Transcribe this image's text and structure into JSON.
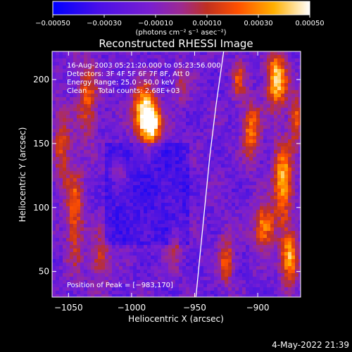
{
  "chart_data": {
    "type": "heatmap",
    "title": "Reconstructed RHESSI Image",
    "xlabel": "Heliocentric X (arcsec)",
    "ylabel": "Heliocentric Y (arcsec)",
    "xlim": [
      -1063,
      -866
    ],
    "ylim": [
      30,
      222
    ],
    "x_ticks": [
      {
        "value": -1050,
        "label": "−1050"
      },
      {
        "value": -1000,
        "label": "−1000"
      },
      {
        "value": -950,
        "label": "−950"
      },
      {
        "value": -900,
        "label": "−900"
      }
    ],
    "y_ticks": [
      {
        "value": 50,
        "label": "50"
      },
      {
        "value": 100,
        "label": "100"
      },
      {
        "value": 150,
        "label": "150"
      },
      {
        "value": 200,
        "label": "200"
      }
    ],
    "colorbar": {
      "min": -0.0005,
      "max": 0.0005,
      "ticks": [
        {
          "value": -0.0005,
          "label": "−0.00050"
        },
        {
          "value": -0.0003,
          "label": "−0.00030"
        },
        {
          "value": -0.0001,
          "label": "−0.00010"
        },
        {
          "value": 0.0001,
          "label": "0.00010"
        },
        {
          "value": 0.0003,
          "label": "0.00030"
        },
        {
          "value": 0.0005,
          "label": "0.00050"
        }
      ],
      "units": "(photons cm⁻² s⁻¹ asec⁻²)",
      "colors": [
        "#0000ff",
        "#7a1fd0",
        "#9d2a90",
        "#c03020",
        "#ff5000",
        "#ffb000",
        "#ffffff"
      ]
    },
    "annotations": [
      "16-Aug-2003 05:21:20.000 to 05:23:56.000",
      "Detectors: 3F 4F 5F 6F 7F 8F, Att 0",
      "Energy Range: 25.0 - 50.0 keV",
      "Clean     Total counts: 2.68E+03"
    ],
    "peak_label": "Position of Peak = [−983,170]",
    "limb_curve": [
      [
        -949,
        30
      ],
      [
        -946,
        60
      ],
      [
        -942,
        100
      ],
      [
        -938,
        140
      ],
      [
        -933,
        180
      ],
      [
        -927,
        222
      ]
    ],
    "grid": false
  },
  "timestamp": "4-May-2022 21:39"
}
